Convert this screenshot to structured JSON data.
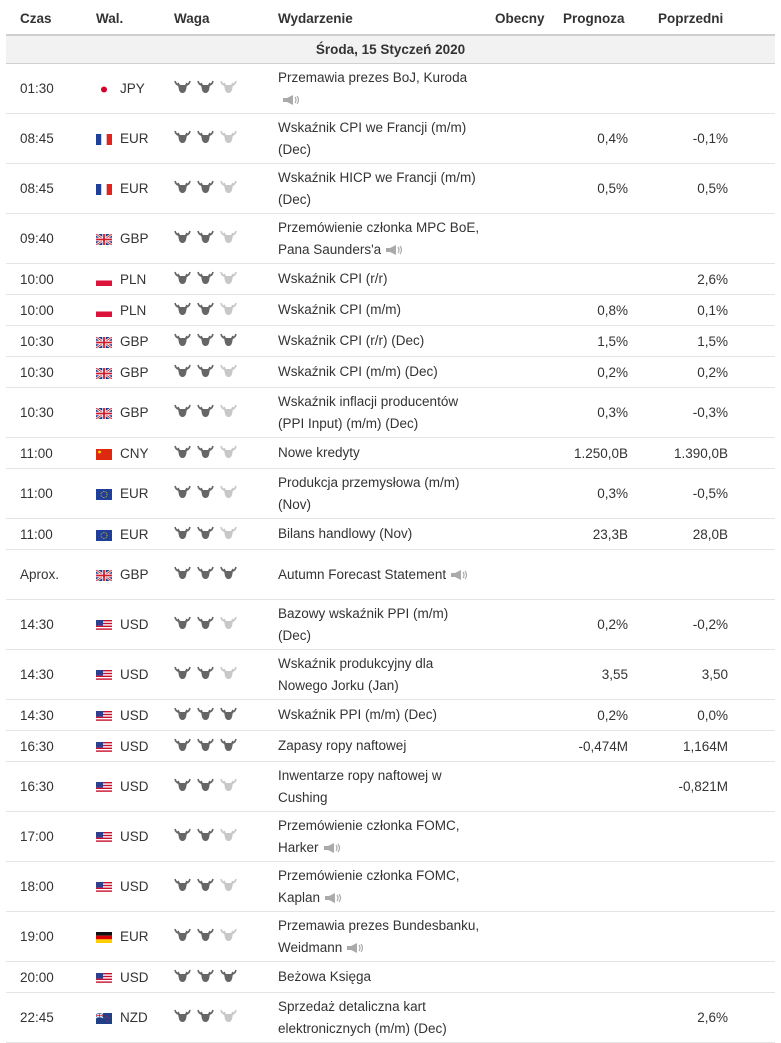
{
  "header": {
    "time": "Czas",
    "currency": "Wal.",
    "importance": "Waga",
    "event": "Wydarzenie",
    "actual": "Obecny",
    "forecast": "Prognoza",
    "previous": "Poprzedni"
  },
  "date_label": "Środa, 15 Styczeń 2020",
  "colors": {
    "bull_active": "#666666",
    "bull_inactive": "#c8c8c8",
    "row_border": "#e4e4e4"
  },
  "events": [
    {
      "time": "01:30",
      "currency": "JPY",
      "flag": "japan",
      "importance": 2,
      "event": "Przemawia prezes BoJ, Kuroda",
      "speech": true,
      "actual": "",
      "forecast": "",
      "previous": ""
    },
    {
      "time": "08:45",
      "currency": "EUR",
      "flag": "france",
      "importance": 2,
      "event": "Wskaźnik CPI we Francji (m/m) (Dec)",
      "speech": false,
      "actual": "",
      "forecast": "0,4%",
      "previous": "-0,1%"
    },
    {
      "time": "08:45",
      "currency": "EUR",
      "flag": "france",
      "importance": 2,
      "event": "Wskaźnik HICP we Francji (m/m) (Dec)",
      "speech": false,
      "actual": "",
      "forecast": "0,5%",
      "previous": "0,5%"
    },
    {
      "time": "09:40",
      "currency": "GBP",
      "flag": "uk",
      "importance": 2,
      "event": "Przemówienie członka MPC BoE, Pana Saunders'a",
      "speech": true,
      "actual": "",
      "forecast": "",
      "previous": ""
    },
    {
      "time": "10:00",
      "currency": "PLN",
      "flag": "poland",
      "importance": 2,
      "event": "Wskaźnik CPI (r/r)",
      "speech": false,
      "actual": "",
      "forecast": "",
      "previous": "2,6%"
    },
    {
      "time": "10:00",
      "currency": "PLN",
      "flag": "poland",
      "importance": 2,
      "event": "Wskaźnik CPI (m/m)",
      "speech": false,
      "actual": "",
      "forecast": "0,8%",
      "previous": "0,1%"
    },
    {
      "time": "10:30",
      "currency": "GBP",
      "flag": "uk",
      "importance": 3,
      "event": "Wskaźnik CPI (r/r) (Dec)",
      "speech": false,
      "actual": "",
      "forecast": "1,5%",
      "previous": "1,5%"
    },
    {
      "time": "10:30",
      "currency": "GBP",
      "flag": "uk",
      "importance": 2,
      "event": "Wskaźnik CPI (m/m) (Dec)",
      "speech": false,
      "actual": "",
      "forecast": "0,2%",
      "previous": "0,2%"
    },
    {
      "time": "10:30",
      "currency": "GBP",
      "flag": "uk",
      "importance": 2,
      "event": "Wskaźnik inflacji producentów (PPI Input) (m/m) (Dec)",
      "speech": false,
      "actual": "",
      "forecast": "0,3%",
      "previous": "-0,3%"
    },
    {
      "time": "11:00",
      "currency": "CNY",
      "flag": "china",
      "importance": 2,
      "event": "Nowe kredyty",
      "speech": false,
      "actual": "",
      "forecast": "1.250,0B",
      "previous": "1.390,0B"
    },
    {
      "time": "11:00",
      "currency": "EUR",
      "flag": "eu",
      "importance": 2,
      "event": "Produkcja przemysłowa (m/m) (Nov)",
      "speech": false,
      "actual": "",
      "forecast": "0,3%",
      "previous": "-0,5%"
    },
    {
      "time": "11:00",
      "currency": "EUR",
      "flag": "eu",
      "importance": 2,
      "event": "Bilans handlowy (Nov)",
      "speech": false,
      "actual": "",
      "forecast": "23,3B",
      "previous": "28,0B"
    },
    {
      "time": "Aprox.",
      "currency": "GBP",
      "flag": "uk",
      "importance": 3,
      "event": "Autumn Forecast Statement",
      "speech": true,
      "actual": "",
      "forecast": "",
      "previous": ""
    },
    {
      "time": "14:30",
      "currency": "USD",
      "flag": "us",
      "importance": 2,
      "event": "Bazowy wskaźnik PPI (m/m) (Dec)",
      "speech": false,
      "actual": "",
      "forecast": "0,2%",
      "previous": "-0,2%"
    },
    {
      "time": "14:30",
      "currency": "USD",
      "flag": "us",
      "importance": 2,
      "event": "Wskaźnik produkcyjny dla Nowego Jorku (Jan)",
      "speech": false,
      "actual": "",
      "forecast": "3,55",
      "previous": "3,50"
    },
    {
      "time": "14:30",
      "currency": "USD",
      "flag": "us",
      "importance": 3,
      "event": "Wskaźnik PPI (m/m) (Dec)",
      "speech": false,
      "actual": "",
      "forecast": "0,2%",
      "previous": "0,0%"
    },
    {
      "time": "16:30",
      "currency": "USD",
      "flag": "us",
      "importance": 3,
      "event": "Zapasy ropy naftowej",
      "speech": false,
      "actual": "",
      "forecast": "-0,474M",
      "previous": "1,164M"
    },
    {
      "time": "16:30",
      "currency": "USD",
      "flag": "us",
      "importance": 2,
      "event": "Inwentarze ropy naftowej w Cushing",
      "speech": false,
      "actual": "",
      "forecast": "",
      "previous": "-0,821M"
    },
    {
      "time": "17:00",
      "currency": "USD",
      "flag": "us",
      "importance": 2,
      "event": "Przemówienie członka FOMC, Harker",
      "speech": true,
      "actual": "",
      "forecast": "",
      "previous": ""
    },
    {
      "time": "18:00",
      "currency": "USD",
      "flag": "us",
      "importance": 2,
      "event": "Przemówienie członka FOMC, Kaplan",
      "speech": true,
      "actual": "",
      "forecast": "",
      "previous": ""
    },
    {
      "time": "19:00",
      "currency": "EUR",
      "flag": "germany",
      "importance": 2,
      "event": "Przemawia prezes Bundesbanku, Weidmann",
      "speech": true,
      "actual": "",
      "forecast": "",
      "previous": ""
    },
    {
      "time": "20:00",
      "currency": "USD",
      "flag": "us",
      "importance": 3,
      "event": "Beżowa Księga",
      "speech": false,
      "actual": "",
      "forecast": "",
      "previous": ""
    },
    {
      "time": "22:45",
      "currency": "NZD",
      "flag": "nz",
      "importance": 2,
      "event": "Sprzedaż detaliczna kart elektronicznych (m/m) (Dec)",
      "speech": false,
      "actual": "",
      "forecast": "",
      "previous": "2,6%"
    }
  ]
}
